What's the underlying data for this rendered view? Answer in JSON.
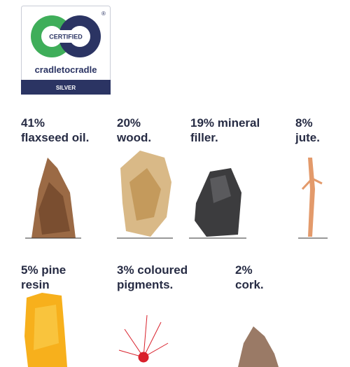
{
  "badge": {
    "certified": "CERTIFIED",
    "brand": "cradletocradle",
    "level": "SILVER",
    "mark": "®"
  },
  "materials": [
    {
      "lines": [
        "41%",
        "flaxseed oil."
      ]
    },
    {
      "lines": [
        "20%",
        "wood."
      ]
    },
    {
      "lines": [
        "19% mineral",
        "filler."
      ]
    },
    {
      "lines": [
        "8%",
        "jute."
      ]
    },
    {
      "lines": [
        "5% pine",
        "resin"
      ]
    },
    {
      "lines": [
        "3% coloured",
        "pigments."
      ]
    },
    {
      "lines": [
        "2%",
        "cork."
      ]
    }
  ]
}
